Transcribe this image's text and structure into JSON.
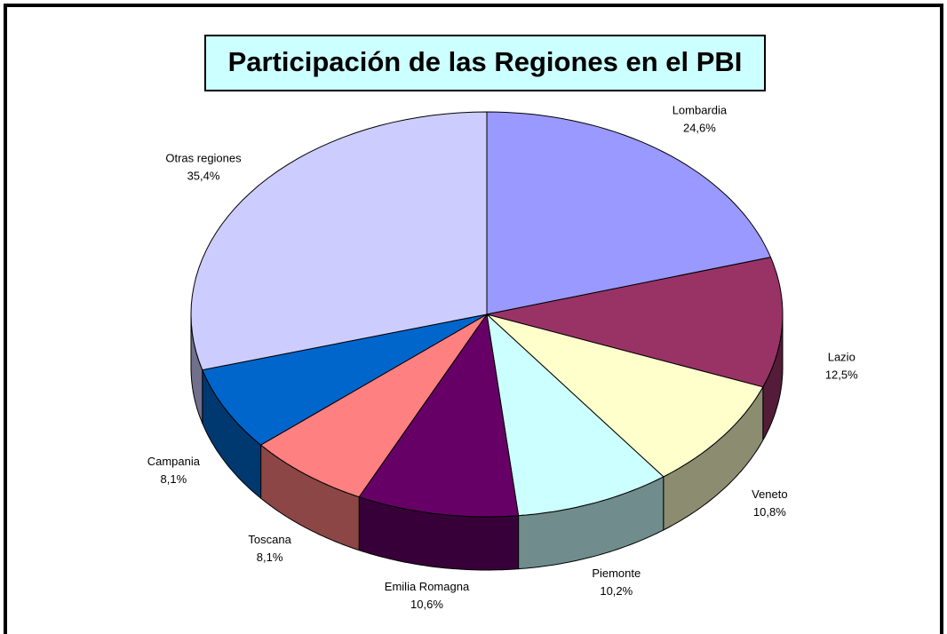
{
  "chart_data": {
    "type": "pie3d",
    "title": "Participación de las Regiones en el PBI",
    "categories": [
      "Lombardia",
      "Lazio",
      "Veneto",
      "Piemonte",
      "Emilia Romagna",
      "Toscana",
      "Campania",
      "Otras regiones"
    ],
    "values": [
      24.6,
      12.5,
      10.8,
      10.2,
      10.6,
      8.1,
      8.1,
      35.4
    ],
    "value_labels": [
      "24,6%",
      "12,5%",
      "10,8%",
      "10,2%",
      "10,6%",
      "8,1%",
      "8,1%",
      "35,4%"
    ],
    "colors": [
      "#9999ff",
      "#993366",
      "#ffffcc",
      "#ccffff",
      "#660066",
      "#ff8080",
      "#0066cc",
      "#ccccff"
    ]
  }
}
